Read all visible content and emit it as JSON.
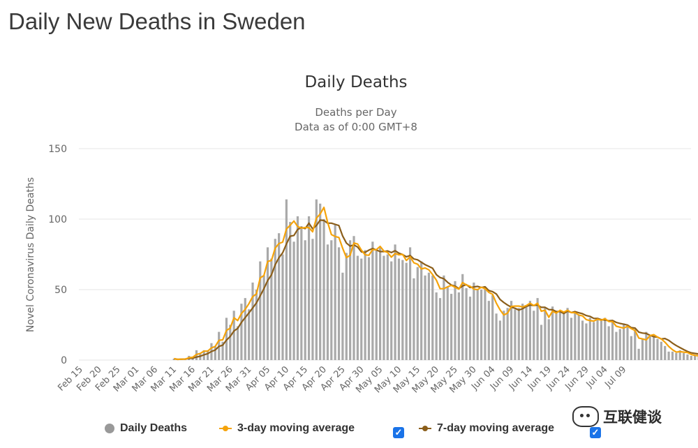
{
  "page_title": "Daily New Deaths in Sweden",
  "watermark": "互联健谈",
  "chart_data": {
    "type": "bar",
    "title": "Daily Deaths",
    "subtitle_lines": [
      "Deaths per Day",
      "Data as of 0:00 GMT+8"
    ],
    "ylabel": "Novel Coronavirus Daily Deaths",
    "xlabel": "",
    "ylim": [
      0,
      150
    ],
    "y_ticks": [
      0,
      50,
      100,
      150
    ],
    "x_tick_labels": [
      "Feb 15",
      "Feb 20",
      "Feb 25",
      "Mar 01",
      "Mar 06",
      "Mar 11",
      "Mar 16",
      "Mar 21",
      "Mar 26",
      "Mar 31",
      "Apr 05",
      "Apr 10",
      "Apr 15",
      "Apr 20",
      "Apr 25",
      "Apr 30",
      "May 05",
      "May 10",
      "May 15",
      "May 20",
      "May 25",
      "May 30",
      "Jun 04",
      "Jun 09",
      "Jun 14",
      "Jun 19",
      "Jun 24",
      "Jun 29",
      "Jul 04",
      "Jul 09"
    ],
    "start_date": "Feb 15",
    "bar_start_index": 25,
    "bar_values": [
      1,
      0,
      1,
      1,
      3,
      2,
      7,
      5,
      7,
      7,
      12,
      10,
      20,
      13,
      30,
      25,
      35,
      24,
      40,
      44,
      36,
      55,
      50,
      70,
      60,
      80,
      72,
      86,
      90,
      75,
      114,
      98,
      84,
      102,
      95,
      85,
      102,
      86,
      114,
      111,
      100,
      82,
      85,
      96,
      80,
      62,
      76,
      85,
      88,
      74,
      72,
      78,
      73,
      84,
      78,
      80,
      74,
      75,
      70,
      82,
      72,
      71,
      69,
      80,
      58,
      66,
      70,
      60,
      62,
      60,
      48,
      44,
      60,
      52,
      47,
      56,
      48,
      61,
      51,
      45,
      55,
      50,
      50,
      52,
      42,
      46,
      33,
      28,
      35,
      37,
      42,
      36,
      37,
      40,
      39,
      42,
      35,
      44,
      25,
      37,
      29,
      38,
      33,
      35,
      34,
      37,
      30,
      34,
      32,
      28,
      26,
      30,
      27,
      30,
      28,
      30,
      24,
      28,
      20,
      22,
      26,
      24,
      17,
      22,
      8,
      15,
      20,
      17,
      17,
      15,
      13,
      10,
      6,
      6,
      5,
      7,
      5,
      4,
      3,
      3,
      3,
      2
    ]
  },
  "legend": {
    "daily_deaths": "Daily Deaths",
    "ma3": "3-day moving average",
    "ma7": "7-day moving average"
  },
  "colors": {
    "bars": "#a9a9a9",
    "ma3": "#f5a30a",
    "ma7": "#8b5e1a",
    "grid": "#e6e6e6",
    "axis_text": "#666666",
    "checkbox": "#1a73e8"
  }
}
